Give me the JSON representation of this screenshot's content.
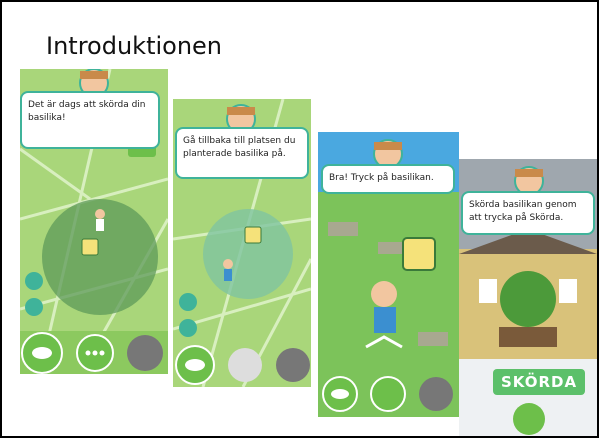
{
  "title": "Introduktionen",
  "screens": [
    {
      "message": "Det är dags att skörda din basilika!"
    },
    {
      "message": "Gå tillbaka till platsen du planterade basilika på."
    },
    {
      "message": "Bra! Tryck på basilikan."
    },
    {
      "message": "Skörda basilikan genom att trycka på Skörda.",
      "button": "SKÖRDA"
    }
  ]
}
